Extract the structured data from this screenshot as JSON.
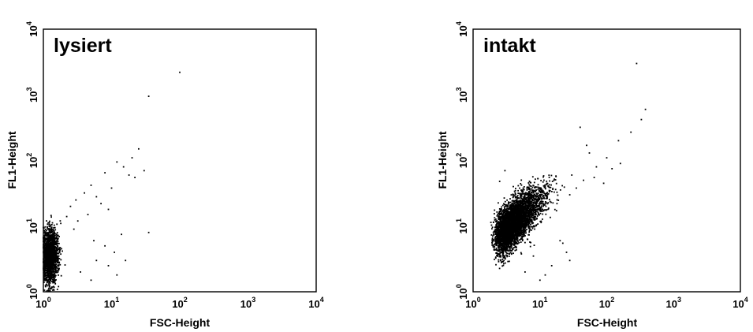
{
  "chart_data": [
    {
      "type": "scatter",
      "title": "lysiert",
      "xlabel": "FSC-Height",
      "ylabel": "FL1-Height",
      "xscale": "log",
      "yscale": "log",
      "xlim": [
        1,
        10000
      ],
      "ylim": [
        1,
        10000
      ],
      "grid": false,
      "ticks": [
        {
          "base": "10",
          "exp": "0",
          "value": 1
        },
        {
          "base": "10",
          "exp": "1",
          "value": 10
        },
        {
          "base": "10",
          "exp": "2",
          "value": 100
        },
        {
          "base": "10",
          "exp": "3",
          "value": 1000
        },
        {
          "base": "10",
          "exp": "4",
          "value": 10000
        }
      ],
      "points": [
        [
          100,
          2200
        ],
        [
          35,
          950
        ],
        [
          25,
          150
        ],
        [
          20,
          110
        ],
        [
          12,
          95
        ],
        [
          15,
          80
        ],
        [
          30,
          70
        ],
        [
          8,
          65
        ],
        [
          18,
          60
        ],
        [
          22,
          55
        ],
        [
          5,
          42
        ],
        [
          10,
          38
        ],
        [
          4,
          32
        ],
        [
          6,
          28
        ],
        [
          3,
          25
        ],
        [
          7,
          22
        ],
        [
          9,
          18
        ],
        [
          2.5,
          20
        ],
        [
          4.5,
          15
        ],
        [
          14,
          7.5
        ],
        [
          35,
          8
        ],
        [
          11,
          4
        ],
        [
          16,
          3
        ],
        [
          6,
          3
        ],
        [
          9,
          2.5
        ],
        [
          12,
          1.8
        ],
        [
          5,
          1.5
        ],
        [
          3.5,
          2
        ],
        [
          2.2,
          14
        ],
        [
          1.8,
          11
        ],
        [
          2.8,
          9
        ],
        [
          3.2,
          12
        ],
        [
          5.5,
          6
        ],
        [
          8,
          5
        ]
      ],
      "dense_cluster": {
        "x_range": [
          1,
          2.2
        ],
        "y_range": [
          1,
          18
        ],
        "center": [
          1.25,
          3.5
        ],
        "count": 1800
      }
    },
    {
      "type": "scatter",
      "title": "intakt",
      "xlabel": "FSC-Height",
      "ylabel": "FL1-Height",
      "xscale": "log",
      "yscale": "log",
      "xlim": [
        1,
        10000
      ],
      "ylim": [
        1,
        10000
      ],
      "grid": false,
      "ticks": [
        {
          "base": "10",
          "exp": "0",
          "value": 1
        },
        {
          "base": "10",
          "exp": "1",
          "value": 10
        },
        {
          "base": "10",
          "exp": "2",
          "value": 100
        },
        {
          "base": "10",
          "exp": "3",
          "value": 1000
        },
        {
          "base": "10",
          "exp": "4",
          "value": 10000
        }
      ],
      "points": [
        [
          280,
          3000
        ],
        [
          380,
          600
        ],
        [
          330,
          420
        ],
        [
          230,
          270
        ],
        [
          150,
          200
        ],
        [
          40,
          320
        ],
        [
          50,
          170
        ],
        [
          100,
          110
        ],
        [
          70,
          80
        ],
        [
          30,
          60
        ],
        [
          45,
          50
        ],
        [
          55,
          130
        ],
        [
          18,
          22
        ],
        [
          25,
          4
        ],
        [
          20,
          6
        ],
        [
          22,
          5.5
        ],
        [
          28,
          3
        ],
        [
          15,
          2.5
        ],
        [
          12,
          1.8
        ],
        [
          10,
          1.5
        ],
        [
          8,
          3.5
        ],
        [
          6,
          2
        ],
        [
          3,
          70
        ],
        [
          2.5,
          48
        ],
        [
          4,
          40
        ],
        [
          160,
          90
        ],
        [
          120,
          75
        ],
        [
          90,
          45
        ],
        [
          65,
          55
        ],
        [
          35,
          38
        ],
        [
          28,
          30
        ]
      ],
      "dense_cluster": {
        "x_range": [
          1.7,
          40
        ],
        "y_range": [
          1,
          60
        ],
        "center": [
          2.5,
          7
        ],
        "count": 4200,
        "trend": "rising"
      }
    }
  ]
}
